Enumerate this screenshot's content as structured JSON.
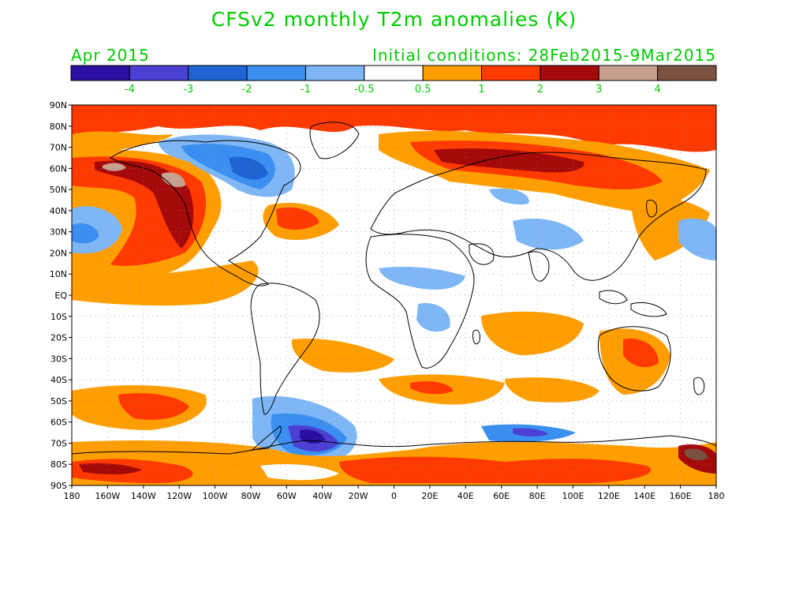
{
  "title": "CFSv2 monthly T2m anomalies (K)",
  "forecast_month": "Apr 2015",
  "initial_conditions": "Initial conditions: 28Feb2015-9Mar2015",
  "colorbar": {
    "colors": [
      "#2a0fa0",
      "#4b3fd4",
      "#1f63d2",
      "#3a8ff0",
      "#7fb6f5",
      "#ffffff",
      "#ff9e00",
      "#ff3a00",
      "#a50a0a",
      "#c8a090",
      "#7a5040"
    ],
    "labels": [
      "-4",
      "-3",
      "-2",
      "-1",
      "-0.5",
      "0.5",
      "1",
      "2",
      "3",
      "4"
    ]
  },
  "lat_labels": [
    "90N",
    "80N",
    "70N",
    "60N",
    "50N",
    "40N",
    "30N",
    "20N",
    "10N",
    "EQ",
    "10S",
    "20S",
    "30S",
    "40S",
    "50S",
    "60S",
    "70S",
    "80S",
    "90S"
  ],
  "lon_labels": [
    "180",
    "160W",
    "140W",
    "120W",
    "100W",
    "80W",
    "60W",
    "40W",
    "20W",
    "0",
    "20E",
    "40E",
    "60E",
    "80E",
    "100E",
    "120E",
    "140E",
    "160E",
    "180"
  ]
}
